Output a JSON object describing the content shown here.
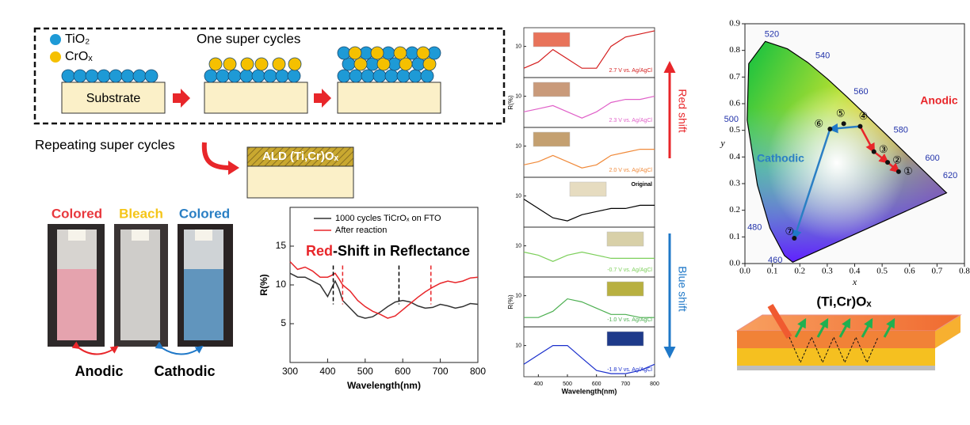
{
  "schematic": {
    "legend": [
      "TiO₂",
      "CrOₓ"
    ],
    "legend_colors": [
      "#1e9ad6",
      "#f5c000"
    ],
    "title": "One super cycles",
    "substrate": "Substrate",
    "repeat": "Repeating super cycles",
    "film": "ALD (Ti,Cr)Oₓ"
  },
  "photos": {
    "labels": [
      "Colored",
      "Bleach",
      "Colored"
    ],
    "label_colors": [
      "#e8383d",
      "#f5c518",
      "#2a7fc4"
    ],
    "processes": [
      "Anodic",
      "Cathodic"
    ]
  },
  "chart_data": [
    {
      "type": "line",
      "title_highlight": "Red",
      "title_rest": "-Shift in Reflectance",
      "x_label": "Wavelength(nm)",
      "y_label": "R(%)",
      "x": [
        300,
        320,
        340,
        360,
        380,
        400,
        410,
        420,
        430,
        440,
        460,
        480,
        500,
        520,
        540,
        560,
        580,
        600,
        620,
        640,
        660,
        680,
        700,
        720,
        740,
        760,
        780,
        800
      ],
      "series": [
        {
          "name": "1000 cycles TiCrOₓ on FTO",
          "color": "#333333",
          "values": [
            11.5,
            11,
            11,
            10.5,
            10,
            8.5,
            9.5,
            10.5,
            9.5,
            8,
            7,
            6,
            5.7,
            5.9,
            6.5,
            7.2,
            7.8,
            8,
            7.8,
            7.3,
            7,
            7.1,
            7.5,
            7.3,
            7,
            7.2,
            7.6,
            7.5
          ]
        },
        {
          "name": "After reaction",
          "color": "#e8262a",
          "values": [
            13,
            12,
            12.3,
            11.8,
            11,
            11,
            11.2,
            11.5,
            10.8,
            10,
            9.2,
            8,
            7.2,
            6.6,
            6.2,
            5.7,
            6,
            6.8,
            7.6,
            8.4,
            9.1,
            9.7,
            10.2,
            10.5,
            10.3,
            10.5,
            10.9,
            11
          ]
        }
      ],
      "markers": [
        {
          "x": 415,
          "color": "#000000"
        },
        {
          "x": 440,
          "color": "#e8262a"
        },
        {
          "x": 590,
          "color": "#000000"
        },
        {
          "x": 675,
          "color": "#e8262a"
        }
      ],
      "xlim": [
        300,
        800
      ],
      "xticks": [
        300,
        400,
        500,
        600,
        700,
        800
      ],
      "ylim": [
        0,
        20
      ],
      "yticks": [
        5,
        10,
        15
      ]
    },
    {
      "type": "line",
      "panels": true,
      "x_label": "Wavelength(nm)",
      "y_label": "R(%)",
      "x": [
        350,
        400,
        450,
        500,
        550,
        600,
        650,
        700,
        750,
        800
      ],
      "series": [
        {
          "name": "2.7 V vs. Ag/AgCl",
          "color": "#d41c1c",
          "swatch": "#e8735a",
          "values": [
            3,
            5,
            9,
            6,
            3,
            3,
            10,
            13,
            14,
            15
          ]
        },
        {
          "name": "2.3 V vs. Ag/AgCl",
          "color": "#e060c8",
          "swatch": "#c99a7a",
          "values": [
            5,
            6,
            7,
            5,
            3,
            5,
            8,
            9,
            9,
            10
          ]
        },
        {
          "name": "2.0 V vs. Ag/AgCl",
          "color": "#f08a3a",
          "swatch": "#c4a070",
          "values": [
            4,
            5,
            7,
            5,
            3,
            4,
            7,
            8,
            9,
            9
          ]
        },
        {
          "name": "Original",
          "color": "#000000",
          "swatch": "#e6dcc0",
          "values": [
            9,
            6,
            3,
            2,
            4,
            5,
            6,
            6,
            7,
            7
          ]
        },
        {
          "name": "-0.7 V vs. Ag/AgCl",
          "color": "#7ccf5a",
          "swatch": "#d8d0a8",
          "values": [
            8,
            7,
            5,
            7,
            8,
            7,
            6,
            6,
            6,
            6
          ]
        },
        {
          "name": "-1.0 V vs. Ag/AgCl",
          "color": "#4caf50",
          "swatch": "#b8b040",
          "values": [
            3,
            3,
            5,
            9,
            8,
            6,
            4,
            4,
            3,
            3
          ]
        },
        {
          "name": "-1.8 V vs. Ag/AgCl",
          "color": "#1a2fcc",
          "swatch": "#1e3a8a",
          "values": [
            4,
            7,
            10,
            10,
            6,
            2,
            1,
            1,
            2,
            4
          ]
        }
      ],
      "annotations": [
        "Red shift",
        "Blue shift"
      ],
      "annotation_colors": [
        "#e8262a",
        "#1f78c8"
      ],
      "xlim": [
        350,
        800
      ],
      "xticks": [
        400,
        500,
        600,
        700,
        800
      ],
      "ylim": [
        0,
        16
      ],
      "yticks": [
        10
      ]
    },
    {
      "type": "scatter",
      "x_label": "x",
      "y_label": "y",
      "x": [
        0.56,
        0.52,
        0.47,
        0.42,
        0.36,
        0.31,
        0.18
      ],
      "values": [
        0.345,
        0.38,
        0.42,
        0.515,
        0.525,
        0.505,
        0.095
      ],
      "point_labels": [
        "①",
        "②",
        "③",
        "④",
        "⑤",
        "⑥",
        "⑦"
      ],
      "locus_labels": [
        "460",
        "480",
        "500",
        "520",
        "540",
        "560",
        "580",
        "600",
        "620"
      ],
      "annotations": [
        "Anodic",
        "Cathodic"
      ],
      "annotation_colors": [
        "#e8262a",
        "#2a7fc4"
      ],
      "xlim": [
        0,
        0.8
      ],
      "xticks": [
        {
          "value": 0,
          "label": "0.0"
        },
        {
          "value": 0.1,
          "label": "0.1"
        },
        {
          "value": 0.2,
          "label": "0.2"
        },
        {
          "value": 0.3,
          "label": "0.3"
        },
        {
          "value": 0.4,
          "label": "0.4"
        },
        {
          "value": 0.5,
          "label": "0.5"
        },
        {
          "value": 0.6,
          "label": "0.6"
        },
        {
          "value": 0.7,
          "label": "0.7"
        },
        {
          "value": 0.8,
          "label": "0.8"
        }
      ],
      "ylim": [
        0,
        0.9
      ],
      "yticks": [
        {
          "value": 0,
          "label": "0.0"
        },
        {
          "value": 0.1,
          "label": "0.1"
        },
        {
          "value": 0.2,
          "label": "0.2"
        },
        {
          "value": 0.3,
          "label": "0.3"
        },
        {
          "value": 0.4,
          "label": "0.4"
        },
        {
          "value": 0.5,
          "label": "0.5"
        },
        {
          "value": 0.6,
          "label": "0.6"
        },
        {
          "value": 0.7,
          "label": "0.7"
        },
        {
          "value": 0.8,
          "label": "0.8"
        },
        {
          "value": 0.9,
          "label": "0.9"
        }
      ]
    }
  ],
  "device": {
    "title": "(Ti,Cr)Oₓ"
  }
}
